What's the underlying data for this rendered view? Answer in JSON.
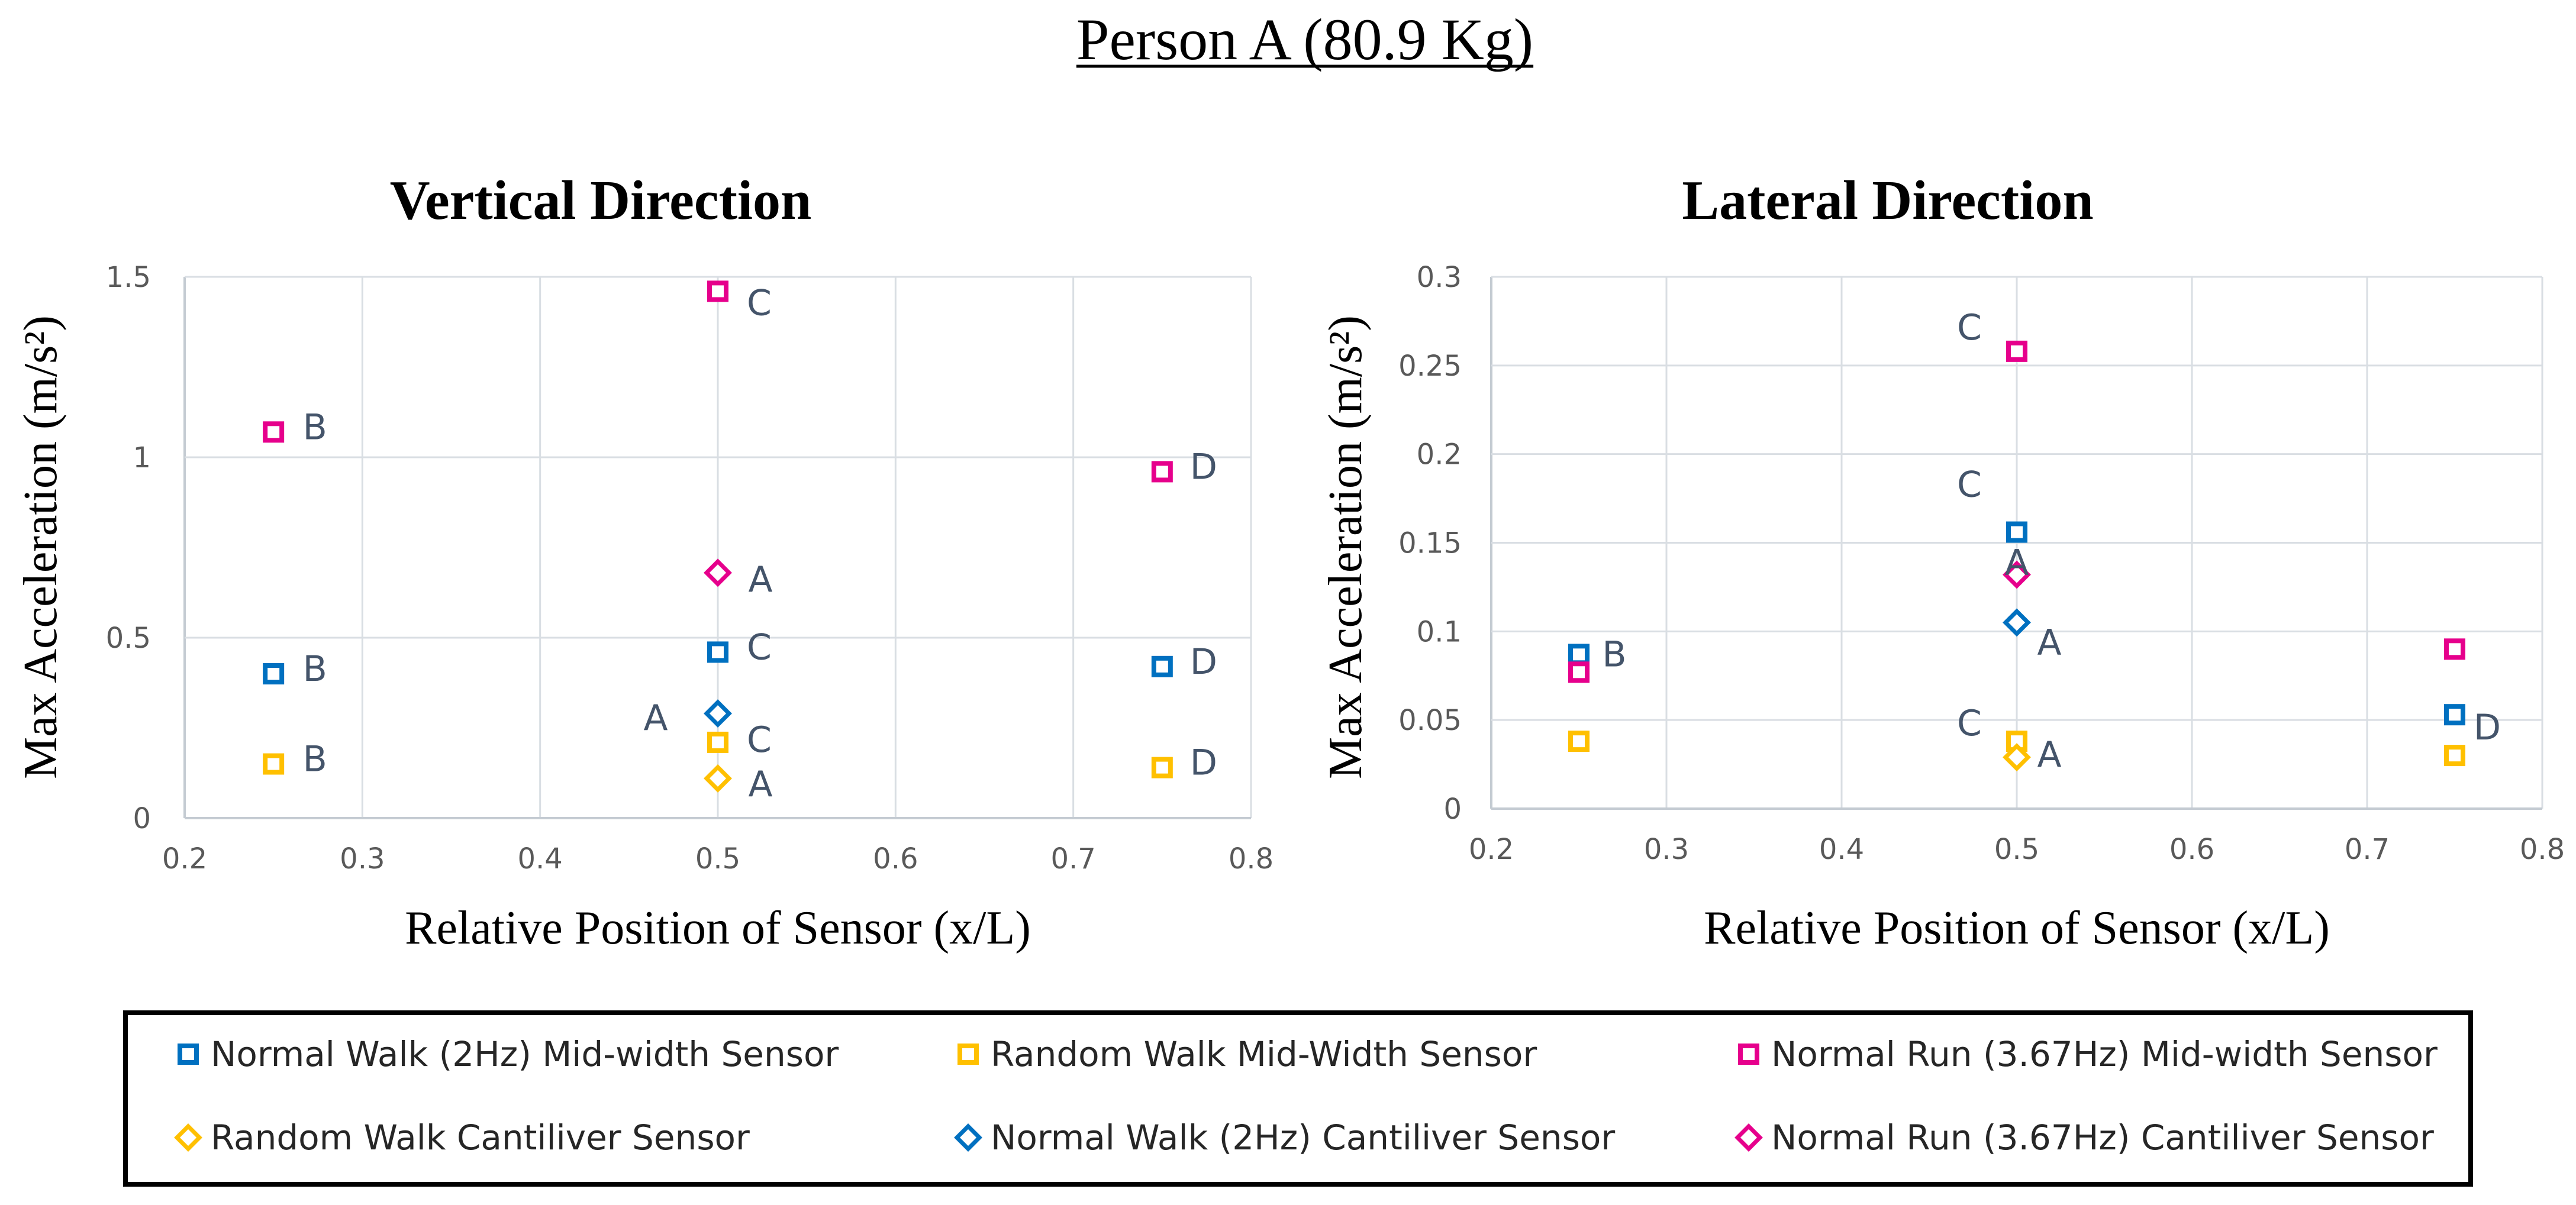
{
  "page": {
    "title": "Person A (80.9 Kg)"
  },
  "series_styles": [
    {
      "name": "Normal Walk (2Hz) Mid-width Sensor",
      "marker": "square",
      "color": "#0070c0"
    },
    {
      "name": "Random Walk Mid-Width Sensor",
      "marker": "square",
      "color": "#ffc000"
    },
    {
      "name": "Normal Run (3.67Hz) Mid-width Sensor",
      "marker": "square",
      "color": "#e6008c"
    },
    {
      "name": "Random Walk Cantiliver Sensor",
      "marker": "diamond",
      "color": "#ffc000"
    },
    {
      "name": "Normal Walk (2Hz) Cantiliver Sensor",
      "marker": "diamond",
      "color": "#0070c0"
    },
    {
      "name": "Normal Run (3.67Hz) Cantiliver Sensor",
      "marker": "diamond",
      "color": "#e6008c"
    }
  ],
  "chart_data": [
    {
      "type": "scatter",
      "title": "Vertical Direction",
      "xlabel": "Relative Position of Sensor (x/L)",
      "ylabel": "Max Acceleration (m/s²)",
      "xlim": [
        0.2,
        0.8
      ],
      "ylim": [
        0,
        1.5
      ],
      "xticks": [
        "0.2",
        "0.3",
        "0.4",
        "0.5",
        "0.6",
        "0.7",
        "0.8"
      ],
      "yticks": [
        "0",
        "0.5",
        "1",
        "1.5"
      ],
      "grid": true,
      "series": [
        {
          "name": "Normal Walk (2Hz) Mid-width Sensor",
          "points": [
            {
              "x": 0.25,
              "y": 0.4,
              "label": "B"
            },
            {
              "x": 0.5,
              "y": 0.46,
              "label": "C"
            },
            {
              "x": 0.75,
              "y": 0.42,
              "label": "D"
            }
          ]
        },
        {
          "name": "Random Walk Mid-Width Sensor",
          "points": [
            {
              "x": 0.25,
              "y": 0.15,
              "label": "B"
            },
            {
              "x": 0.5,
              "y": 0.21,
              "label": "C"
            },
            {
              "x": 0.75,
              "y": 0.14,
              "label": "D"
            }
          ]
        },
        {
          "name": "Normal Run (3.67Hz) Mid-width Sensor",
          "points": [
            {
              "x": 0.25,
              "y": 1.07,
              "label": "B"
            },
            {
              "x": 0.5,
              "y": 1.46,
              "label": "C"
            },
            {
              "x": 0.75,
              "y": 0.96,
              "label": "D"
            }
          ]
        },
        {
          "name": "Random Walk Cantiliver Sensor",
          "points": [
            {
              "x": 0.5,
              "y": 0.11,
              "label": "A"
            }
          ]
        },
        {
          "name": "Normal Walk (2Hz) Cantiliver Sensor",
          "points": [
            {
              "x": 0.5,
              "y": 0.29,
              "label": "A"
            }
          ]
        },
        {
          "name": "Normal Run (3.67Hz) Cantiliver Sensor",
          "points": [
            {
              "x": 0.5,
              "y": 0.68,
              "label": "A"
            }
          ]
        }
      ]
    },
    {
      "type": "scatter",
      "title": "Lateral Direction",
      "xlabel": "Relative Position of Sensor (x/L)",
      "ylabel": "Max Acceleration (m/s²)",
      "xlim": [
        0.2,
        0.8
      ],
      "ylim": [
        0,
        0.3
      ],
      "xticks": [
        "0.2",
        "0.3",
        "0.4",
        "0.5",
        "0.6",
        "0.7",
        "0.8"
      ],
      "yticks": [
        "0",
        "0.05",
        "0.1",
        "0.15",
        "0.2",
        "0.25",
        "0.3"
      ],
      "grid": true,
      "series": [
        {
          "name": "Normal Walk (2Hz) Mid-width Sensor",
          "points": [
            {
              "x": 0.25,
              "y": 0.087,
              "label": "B"
            },
            {
              "x": 0.5,
              "y": 0.156,
              "label": "C"
            },
            {
              "x": 0.75,
              "y": 0.053,
              "label": "D"
            }
          ]
        },
        {
          "name": "Random Walk Mid-Width Sensor",
          "points": [
            {
              "x": 0.25,
              "y": 0.038,
              "label": ""
            },
            {
              "x": 0.5,
              "y": 0.038,
              "label": "C"
            },
            {
              "x": 0.75,
              "y": 0.03,
              "label": ""
            }
          ]
        },
        {
          "name": "Normal Run (3.67Hz) Mid-width Sensor",
          "points": [
            {
              "x": 0.25,
              "y": 0.077,
              "label": ""
            },
            {
              "x": 0.5,
              "y": 0.258,
              "label": "C"
            },
            {
              "x": 0.75,
              "y": 0.09,
              "label": ""
            }
          ]
        },
        {
          "name": "Random Walk Cantiliver Sensor",
          "points": [
            {
              "x": 0.5,
              "y": 0.029,
              "label": "A"
            }
          ]
        },
        {
          "name": "Normal Walk (2Hz) Cantiliver Sensor",
          "points": [
            {
              "x": 0.5,
              "y": 0.105,
              "label": "A"
            }
          ]
        },
        {
          "name": "Normal Run (3.67Hz) Cantiliver Sensor",
          "points": [
            {
              "x": 0.5,
              "y": 0.132,
              "label": "A"
            }
          ]
        }
      ]
    }
  ]
}
